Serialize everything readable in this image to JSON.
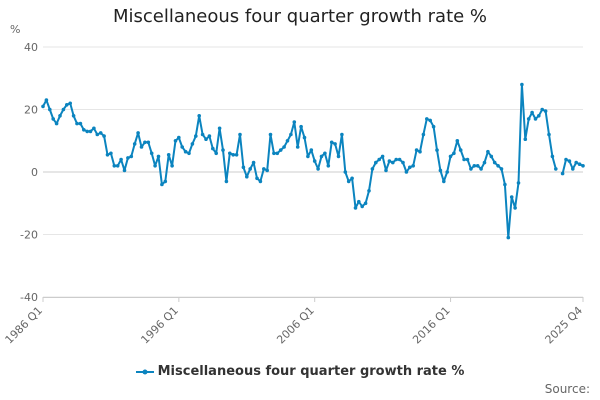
{
  "chart_data": {
    "type": "line",
    "title": "Miscellaneous four quarter growth rate %",
    "ylabel": "%",
    "xlabel": "",
    "ylim": [
      -40,
      40
    ],
    "yticks": [
      40,
      20,
      0,
      -20,
      -40
    ],
    "xticks": [
      {
        "index": 0,
        "label": "1986 Q1"
      },
      {
        "index": 40,
        "label": "1996 Q1"
      },
      {
        "index": 80,
        "label": "2006 Q1"
      },
      {
        "index": 120,
        "label": "2016 Q1"
      },
      {
        "index": 159,
        "label": "2025 Q4"
      }
    ],
    "grid": true,
    "legend_position": "bottom",
    "series": [
      {
        "name": "Miscellaneous four quarter growth rate %",
        "color": "#0b84bf",
        "start": "1986 Q1",
        "values": [
          21,
          23,
          20,
          17,
          15.5,
          18,
          20,
          21.5,
          22,
          18,
          15.5,
          15.5,
          13.5,
          13,
          13,
          14,
          12,
          12.5,
          11.5,
          5.5,
          6,
          2,
          2,
          4,
          0.5,
          4.5,
          5,
          9,
          12.5,
          8,
          9.5,
          9.5,
          6,
          2,
          5,
          -4,
          -3,
          5.5,
          2,
          10,
          11,
          8,
          6.5,
          6,
          9,
          11.5,
          18,
          12,
          10.5,
          11.5,
          7.5,
          6,
          14,
          7,
          -3,
          6,
          5.5,
          5.5,
          12,
          1.5,
          -1.5,
          1,
          3,
          -2,
          -3,
          1,
          0.5,
          12,
          6,
          6,
          7,
          8,
          10,
          12,
          16,
          8,
          14.5,
          11,
          5,
          7,
          3.5,
          1,
          5,
          6,
          2,
          9.5,
          9,
          5,
          12,
          0,
          -3,
          -2,
          -11.5,
          -9.5,
          -11,
          -10,
          -6,
          1,
          3,
          4,
          5,
          0.5,
          3.5,
          3,
          4,
          4,
          3,
          0,
          1.5,
          2,
          7,
          6.5,
          12,
          17,
          16.5,
          14.5,
          7,
          0.5,
          -3,
          0,
          5,
          6,
          10,
          7,
          4,
          4,
          1,
          2,
          2,
          1,
          3,
          6.5,
          5,
          3,
          2,
          1,
          -4,
          -21,
          -8,
          -11.5,
          -3.5,
          28,
          10.5,
          17,
          19,
          17,
          18,
          20,
          19.5,
          12,
          5,
          1,
          null,
          -0.5,
          4,
          3.5,
          1,
          3,
          2.5,
          2
        ]
      }
    ]
  },
  "legend": {
    "label": "Miscellaneous four quarter growth rate %"
  },
  "footer": {
    "source": "Source:"
  }
}
